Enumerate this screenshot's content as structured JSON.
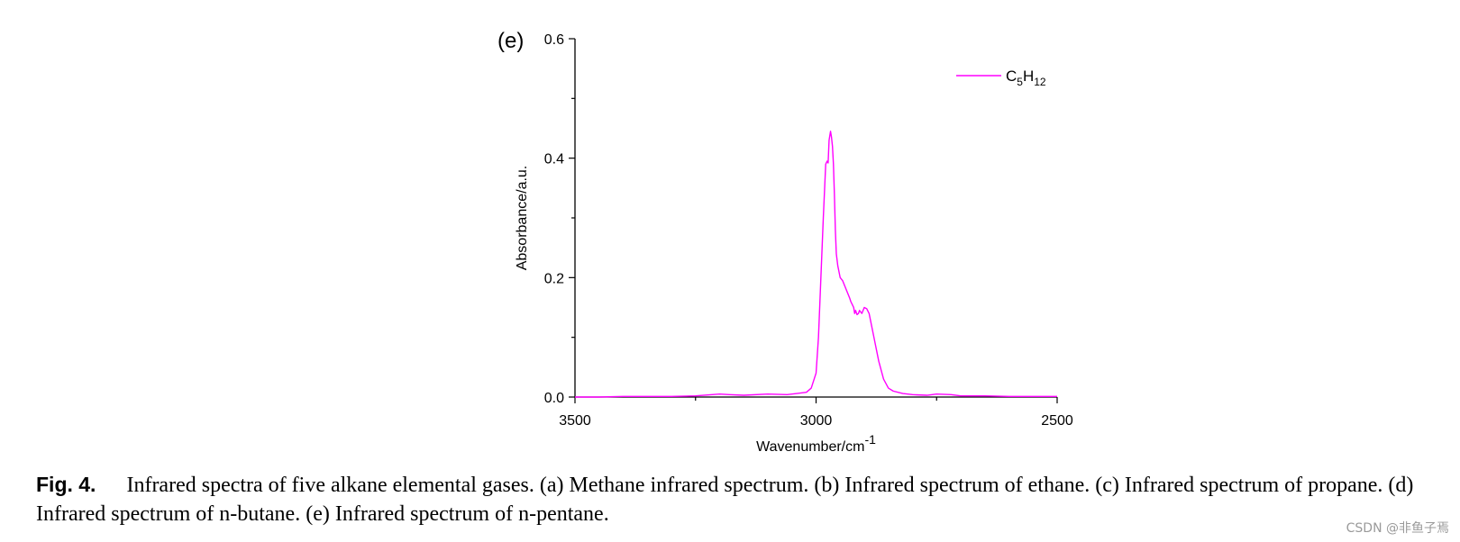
{
  "panel_label": "(e)",
  "chart_data": {
    "type": "line",
    "xlabel": "Wavenumber/cm",
    "xlabel_exponent": "-1",
    "ylabel": "Absorbance/a.u.",
    "xlim": [
      3500,
      2500
    ],
    "ylim": [
      0.0,
      0.6
    ],
    "x_ticks": [
      3500,
      3000,
      2500
    ],
    "x_tick_labels": [
      "3500",
      "3000",
      "2500"
    ],
    "y_ticks": [
      0.0,
      0.2,
      0.4,
      0.6
    ],
    "y_tick_labels": [
      "0.0",
      "0.2",
      "0.4",
      "0.6"
    ],
    "grid": false,
    "legend_position": "top-right",
    "series": [
      {
        "name": "C5H12",
        "legend_main_1": "C",
        "legend_sub_1": "5",
        "legend_main_2": "H",
        "legend_sub_2": "12",
        "color": "#ff00ff",
        "x": [
          3500,
          3450,
          3400,
          3350,
          3300,
          3250,
          3200,
          3180,
          3150,
          3100,
          3060,
          3040,
          3020,
          3010,
          3000,
          2995,
          2990,
          2985,
          2980,
          2977,
          2975,
          2973,
          2970,
          2968,
          2966,
          2964,
          2962,
          2960,
          2958,
          2955,
          2950,
          2945,
          2940,
          2935,
          2930,
          2928,
          2925,
          2922,
          2920,
          2918,
          2915,
          2912,
          2910,
          2905,
          2900,
          2895,
          2890,
          2885,
          2880,
          2875,
          2870,
          2860,
          2850,
          2840,
          2820,
          2800,
          2770,
          2750,
          2720,
          2700,
          2650,
          2600,
          2550,
          2500
        ],
        "y": [
          0.0,
          0.0,
          0.001,
          0.001,
          0.001,
          0.002,
          0.005,
          0.004,
          0.003,
          0.005,
          0.004,
          0.006,
          0.008,
          0.015,
          0.04,
          0.1,
          0.2,
          0.3,
          0.39,
          0.395,
          0.392,
          0.43,
          0.445,
          0.435,
          0.42,
          0.39,
          0.34,
          0.28,
          0.24,
          0.22,
          0.2,
          0.195,
          0.185,
          0.175,
          0.165,
          0.16,
          0.155,
          0.15,
          0.14,
          0.145,
          0.138,
          0.14,
          0.145,
          0.14,
          0.15,
          0.148,
          0.14,
          0.12,
          0.1,
          0.08,
          0.06,
          0.03,
          0.015,
          0.01,
          0.006,
          0.004,
          0.003,
          0.005,
          0.004,
          0.002,
          0.002,
          0.001,
          0.001,
          0.001
        ]
      }
    ]
  },
  "caption": {
    "fig_label": "Fig. 4.",
    "text": "Infrared spectra of five alkane elemental gases. (a) Methane infrared spectrum. (b) Infrared spectrum of ethane. (c) Infrared spectrum of propane. (d) Infrared spectrum of n-butane. (e) Infrared spectrum of n-pentane."
  },
  "watermark": "CSDN @非鱼子焉"
}
